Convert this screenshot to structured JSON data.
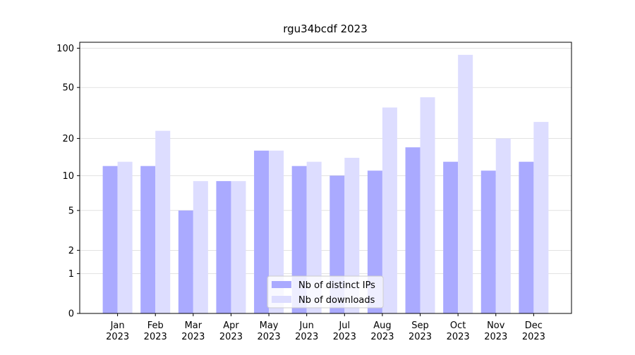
{
  "chart_data": {
    "type": "bar",
    "title": "rgu34bcdf 2023",
    "categories": [
      "Jan\n2023",
      "Feb\n2023",
      "Mar\n2023",
      "Apr\n2023",
      "May\n2023",
      "Jun\n2023",
      "Jul\n2023",
      "Aug\n2023",
      "Sep\n2023",
      "Oct\n2023",
      "Nov\n2023",
      "Dec\n2023"
    ],
    "series": [
      {
        "name": "Nb of distinct IPs",
        "color": "#aaaaff",
        "values": [
          12,
          12,
          5,
          9,
          16,
          12,
          10,
          11,
          17,
          13,
          11,
          13
        ]
      },
      {
        "name": "Nb of downloads",
        "color": "#ddddff",
        "values": [
          13,
          23,
          9,
          9,
          16,
          13,
          14,
          35,
          42,
          89,
          20,
          27
        ]
      }
    ],
    "scale": "log1p",
    "ylim": [
      0,
      111
    ],
    "yticks": [
      0,
      1,
      2,
      5,
      10,
      20,
      50,
      100
    ],
    "grid": true,
    "legend": "bottom"
  }
}
